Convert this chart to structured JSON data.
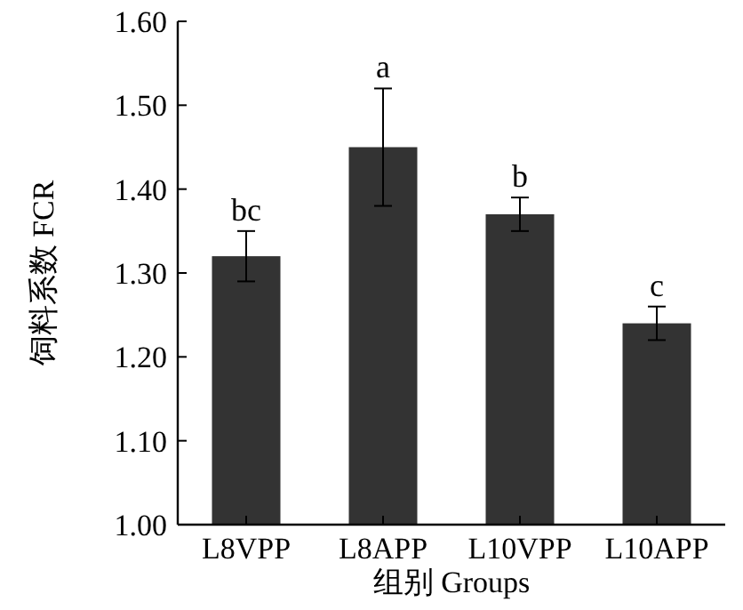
{
  "chart_data": {
    "type": "bar",
    "xlabel": "组别 Groups",
    "ylabel": "饲料系数 FCR",
    "categories": [
      "L8VPP",
      "L8APP",
      "L10VPP",
      "L10APP"
    ],
    "values": [
      1.32,
      1.45,
      1.37,
      1.24
    ],
    "errors": [
      0.03,
      0.07,
      0.02,
      0.02
    ],
    "color": "#333333",
    "ylim": [
      1.0,
      1.6
    ],
    "yticks": [
      {
        "value": 1.0,
        "label": "1.00"
      },
      {
        "value": 1.1,
        "label": "1.10"
      },
      {
        "value": 1.2,
        "label": "1.20"
      },
      {
        "value": 1.3,
        "label": "1.30"
      },
      {
        "value": 1.4,
        "label": "1.40"
      },
      {
        "value": 1.5,
        "label": "1.50"
      },
      {
        "value": 1.6,
        "label": "1.60"
      }
    ],
    "annotations": [
      {
        "text": "bc",
        "x": "L8VPP",
        "y": 1.35
      },
      {
        "text": "a",
        "x": "L8APP",
        "y": 1.52
      },
      {
        "text": "b",
        "x": "L10VPP",
        "y": 1.39
      },
      {
        "text": "c",
        "x": "L10APP",
        "y": 1.26
      }
    ],
    "grid": false
  }
}
